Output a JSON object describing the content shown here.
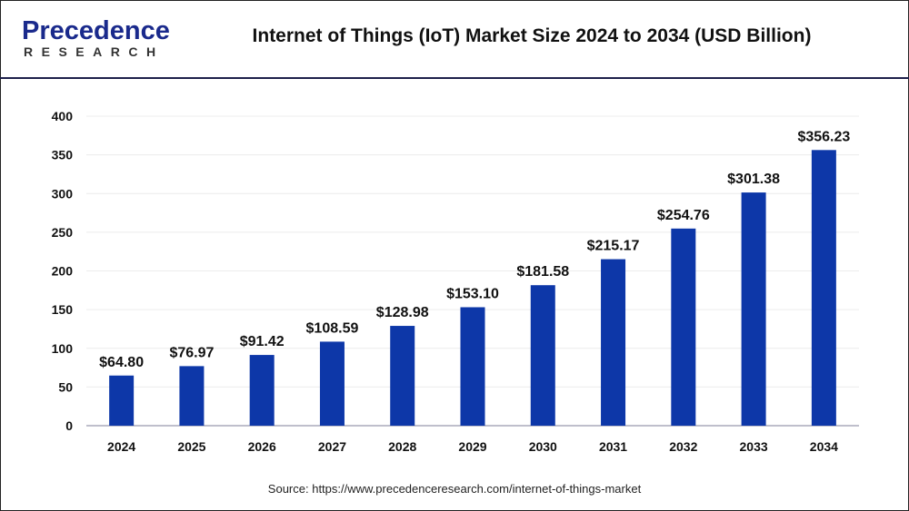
{
  "logo": {
    "main": "Precedence",
    "sub": "RESEARCH"
  },
  "source": "Source: https://www.precedenceresearch.com/internet-of-things-market",
  "chart_data": {
    "type": "bar",
    "title": "Internet of Things (IoT) Market Size 2024 to 2034 (USD Billion)",
    "xlabel": "",
    "ylabel": "",
    "categories": [
      "2024",
      "2025",
      "2026",
      "2027",
      "2028",
      "2029",
      "2030",
      "2031",
      "2032",
      "2033",
      "2034"
    ],
    "values": [
      64.8,
      76.97,
      91.42,
      108.59,
      128.98,
      153.1,
      181.58,
      215.17,
      254.76,
      301.38,
      356.23
    ],
    "data_labels": [
      "$64.80",
      "$76.97",
      "$91.42",
      "$108.59",
      "$128.98",
      "$153.10",
      "$181.58",
      "$215.17",
      "$254.76",
      "$301.38",
      "$356.23"
    ],
    "ylim": [
      0,
      400
    ],
    "yticks": [
      0,
      50,
      100,
      150,
      200,
      250,
      300,
      350,
      400
    ],
    "grid": true,
    "bar_color": "#0d37a8"
  }
}
